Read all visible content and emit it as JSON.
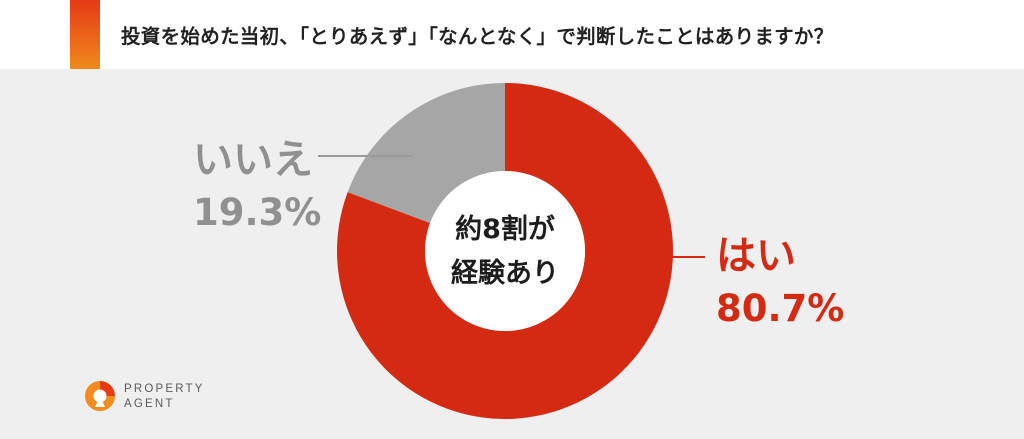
{
  "title": "投資を始めた当初、「とりあえず」「なんとなく」で判断したことはありますか？",
  "center_label": [
    "約8割が",
    "経験あり"
  ],
  "colors": {
    "yes": "#d42a12",
    "no": "#a6a6a6",
    "background": "#efefef",
    "accent": "#e53a14"
  },
  "logo": {
    "line1": "PROPERTY",
    "line2": "AGENT"
  },
  "chart_data": {
    "type": "pie",
    "subtype": "donut",
    "title": "投資を始めた当初、「とりあえず」「なんとなく」で判断したことはありますか？",
    "slices": [
      {
        "label": "はい",
        "value": 80.7,
        "display": "80.7%",
        "color": "#d42a12"
      },
      {
        "label": "いいえ",
        "value": 19.3,
        "display": "19.3%",
        "color": "#a6a6a6"
      }
    ],
    "unit": "%"
  }
}
